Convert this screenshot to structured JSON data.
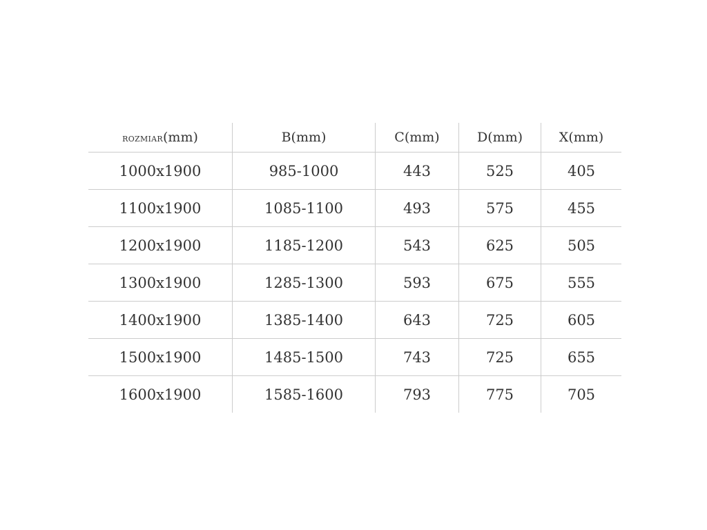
{
  "table": {
    "headers": [
      {
        "prefix": "ROZMIAR",
        "unit": "(mm)"
      },
      {
        "prefix": "B",
        "unit": "(mm)"
      },
      {
        "prefix": "C",
        "unit": "(mm)"
      },
      {
        "prefix": "D",
        "unit": "(mm)"
      },
      {
        "prefix": "X",
        "unit": "(mm)"
      }
    ],
    "rows": [
      [
        "1000x1900",
        "985-1000",
        "443",
        "525",
        "405"
      ],
      [
        "1100x1900",
        "1085-1100",
        "493",
        "575",
        "455"
      ],
      [
        "1200x1900",
        "1185-1200",
        "543",
        "625",
        "505"
      ],
      [
        "1300x1900",
        "1285-1300",
        "593",
        "675",
        "555"
      ],
      [
        "1400x1900",
        "1385-1400",
        "643",
        "725",
        "605"
      ],
      [
        "1500x1900",
        "1485-1500",
        "743",
        "725",
        "655"
      ],
      [
        "1600x1900",
        "1585-1600",
        "793",
        "775",
        "705"
      ]
    ]
  }
}
